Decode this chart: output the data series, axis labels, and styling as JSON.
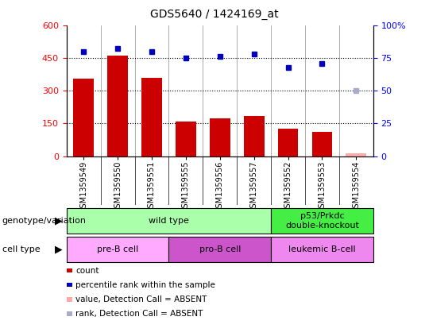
{
  "title": "GDS5640 / 1424169_at",
  "samples": [
    "GSM1359549",
    "GSM1359550",
    "GSM1359551",
    "GSM1359555",
    "GSM1359556",
    "GSM1359557",
    "GSM1359552",
    "GSM1359553",
    "GSM1359554"
  ],
  "counts": [
    355,
    460,
    360,
    160,
    175,
    185,
    125,
    110,
    null
  ],
  "counts_absent": [
    null,
    null,
    null,
    null,
    null,
    null,
    null,
    null,
    15
  ],
  "percentile": [
    80,
    82,
    80,
    75,
    76,
    78,
    68,
    71,
    null
  ],
  "percentile_absent": [
    null,
    null,
    null,
    null,
    null,
    null,
    null,
    null,
    50
  ],
  "ylim_left": [
    0,
    600
  ],
  "ylim_right": [
    0,
    100
  ],
  "yticks_left": [
    0,
    150,
    300,
    450,
    600
  ],
  "yticks_right": [
    0,
    25,
    50,
    75,
    100
  ],
  "ytick_labels_right": [
    "0",
    "25",
    "50",
    "75",
    "100%"
  ],
  "bar_color": "#cc0000",
  "bar_color_absent": "#ffaaaa",
  "dot_color": "#0000bb",
  "dot_color_absent": "#aaaacc",
  "bg_color": "#ffffff",
  "genotype_groups": [
    {
      "label": "wild type",
      "start": 0,
      "end": 6,
      "color": "#aaffaa"
    },
    {
      "label": "p53/Prkdc\ndouble-knockout",
      "start": 6,
      "end": 9,
      "color": "#44ee44"
    }
  ],
  "cell_type_groups": [
    {
      "label": "pre-B cell",
      "start": 0,
      "end": 3,
      "color": "#ffaaff"
    },
    {
      "label": "pro-B cell",
      "start": 3,
      "end": 6,
      "color": "#cc55cc"
    },
    {
      "label": "leukemic B-cell",
      "start": 6,
      "end": 9,
      "color": "#ee88ee"
    }
  ],
  "legend_items": [
    {
      "label": "count",
      "color": "#cc0000"
    },
    {
      "label": "percentile rank within the sample",
      "color": "#0000bb"
    },
    {
      "label": "value, Detection Call = ABSENT",
      "color": "#ffaaaa"
    },
    {
      "label": "rank, Detection Call = ABSENT",
      "color": "#aaaacc"
    }
  ]
}
